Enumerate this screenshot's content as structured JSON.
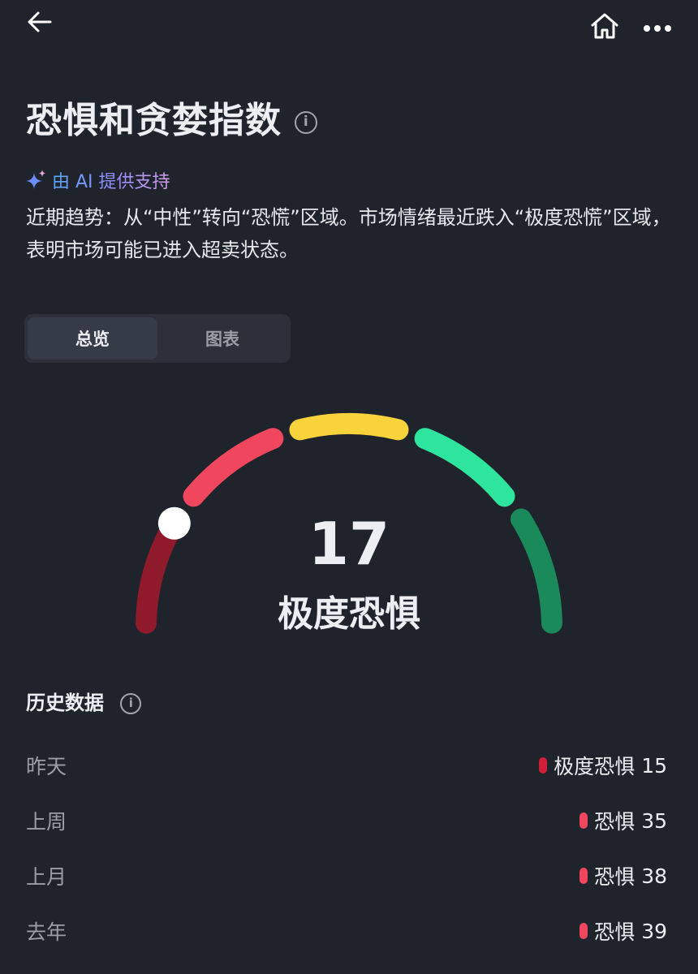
{
  "header": {
    "back_icon": "arrow-left",
    "home_icon": "home",
    "more_icon": "ellipsis"
  },
  "title": "恐惧和贪婪指数",
  "ai_label": "由 AI 提供支持",
  "summary": "近期趋势：从“中性”转向“恐慌”区域。市场情绪最近跌入“极度恐慌”区域，表明市场可能已进入超卖状态。",
  "tabs": [
    {
      "label": "总览",
      "active": true
    },
    {
      "label": "图表",
      "active": false
    }
  ],
  "gauge": {
    "value": 17,
    "max": 100,
    "label": "极度恐惧",
    "colors": [
      "#8e1a2b",
      "#f0475e",
      "#f9d33b",
      "#2ee59d",
      "#1b8a5a"
    ]
  },
  "history": {
    "title": "历史数据",
    "rows": [
      {
        "period": "昨天",
        "label": "极度恐惧",
        "value": "15",
        "color": "#d21f37"
      },
      {
        "period": "上周",
        "label": "恐惧",
        "value": "35",
        "color": "#f0475e"
      },
      {
        "period": "上月",
        "label": "恐惧",
        "value": "38",
        "color": "#f0475e"
      },
      {
        "period": "去年",
        "label": "恐惧",
        "value": "39",
        "color": "#f0475e"
      }
    ]
  }
}
